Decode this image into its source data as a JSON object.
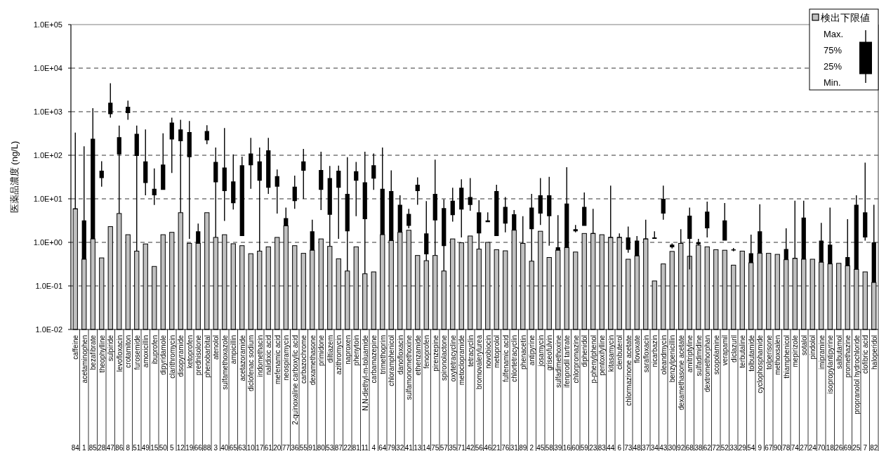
{
  "chart_data": {
    "type": "candlestick",
    "ylabel": "医薬品濃度 (ng/L)",
    "categories": [
      "caffeine",
      "acetaminophen",
      "bezafibrate",
      "theophylline",
      "sulpiride",
      "levofloxacin",
      "crotamiton",
      "furosemide",
      "amoxicillin",
      "ibuprofen",
      "dipyridamole",
      "clarithromycin",
      "disopyramide",
      "ketoprofen",
      "prednisolone",
      "phenobarbital",
      "atenolol",
      "sulfamethoxazole",
      "ampicillin",
      "acetazoramide",
      "diclofenac sodium",
      "indomethacin",
      "nalidixic acid",
      "mefenamic acid",
      "neospiramycin",
      "2-quinoxaline carboxylic acid",
      "carbazochrome",
      "dexamethasone",
      "primidone",
      "diltiazem",
      "azithromycin",
      "naproxen",
      "phenytoin",
      "N,N-diethyl-m-toluamide",
      "carbamazepine",
      "trimethoprim",
      "chloramphenicol",
      "danofloxacin",
      "sulfamonomethoxine",
      "ethenzamide",
      "fenoprofen",
      "pirenzepine",
      "spironolactone",
      "oxytetracycline",
      "metoclopramide",
      "tetracyclin",
      "bromovalerylurea",
      "novobiocin",
      "metoprolol",
      "fulfenamic acid",
      "chlortetracyclin",
      "phenacetin",
      "antipyrine",
      "josamycin",
      "griseofulvin",
      "sulfadimethoxine",
      "ifenprodil tartrate",
      "chlorpromazine",
      "diphenidol",
      "p-phenylphenol",
      "pentoxifylline",
      "kitasamycin",
      "clenbuterol",
      "chlormazinone acetate",
      "flovoxate",
      "sarafloxacin",
      "nicarbazin",
      "oleandmycin",
      "benzylpenicillin",
      "dexamethasone acetate",
      "amitriptyline",
      "sulfadimidine",
      "dextromethorphan",
      "scopolamine",
      "verapamil",
      "diclazuril",
      "terbutaline",
      "tolbutamide",
      "cyclophosphamide",
      "tolperisone",
      "methoxsalen",
      "thiamphenicol",
      "mepirizole",
      "sotalol",
      "pindolol",
      "imipramine",
      "isopropylantipyrine",
      "salbutamol",
      "promethazine",
      "propranolol hydrochloride",
      "clofibric acid",
      "haloperidol"
    ],
    "color": "#000000",
    "ohlc": [
      [
        5.9,
        330,
        5.9,
        5.9
      ],
      [
        0.41,
        160,
        0.41,
        3.2
      ],
      [
        1.2,
        1200,
        1.2,
        240
      ],
      [
        30,
        73,
        19,
        44
      ],
      [
        880,
        4500,
        730,
        1600
      ],
      [
        105,
        480,
        4.6,
        260
      ],
      [
        930,
        1800,
        650,
        1300
      ],
      [
        96,
        480,
        0.63,
        310
      ],
      [
        23,
        390,
        12,
        72
      ],
      [
        12,
        50,
        7.2,
        17
      ],
      [
        16,
        320,
        16,
        61
      ],
      [
        230,
        730,
        39,
        560
      ],
      [
        210,
        650,
        4.8,
        390
      ],
      [
        90,
        610,
        1.2,
        340
      ],
      [
        0.95,
        2.7,
        0.95,
        1.8
      ],
      [
        220,
        490,
        180,
        360
      ],
      [
        24,
        150,
        1.3,
        70
      ],
      [
        15,
        420,
        3.1,
        52
      ],
      [
        7.9,
        105,
        5.7,
        25
      ],
      [
        1.4,
        93,
        1.4,
        59
      ],
      [
        59,
        250,
        17,
        110
      ],
      [
        26,
        150,
        0.63,
        72
      ],
      [
        18,
        250,
        13,
        130
      ],
      [
        19,
        47,
        4.6,
        33
      ],
      [
        2.4,
        6.3,
        2.4,
        3.6
      ],
      [
        8.9,
        34,
        5.9,
        19
      ],
      [
        44,
        140,
        10,
        72
      ],
      [
        0.66,
        3.3,
        0.66,
        1.8
      ],
      [
        16,
        120,
        5.5,
        46
      ],
      [
        4.3,
        57,
        0.81,
        30
      ],
      [
        18,
        58,
        1.2,
        44
      ],
      [
        1.8,
        90,
        0.22,
        13
      ],
      [
        26,
        70,
        4,
        43
      ],
      [
        3.4,
        120,
        0.19,
        24
      ],
      [
        29,
        110,
        16,
        59
      ],
      [
        1.5,
        150,
        1.5,
        17
      ],
      [
        1.1,
        45,
        1.1,
        15
      ],
      [
        1.7,
        12,
        1.7,
        7.3
      ],
      [
        2.4,
        5.9,
        2.1,
        4.5
      ],
      [
        15,
        31,
        7.3,
        21
      ],
      [
        0.53,
        8.9,
        0.38,
        1.6
      ],
      [
        3.2,
        79,
        0.5,
        13
      ],
      [
        0.82,
        9.7,
        0.22,
        6.1
      ],
      [
        4.2,
        18,
        3,
        9
      ],
      [
        5.7,
        28,
        1.3,
        18
      ],
      [
        7.2,
        30,
        5.3,
        11
      ],
      [
        1.6,
        9.3,
        0.7,
        4.9
      ],
      [
        2.9,
        4.9,
        2.9,
        3.2
      ],
      [
        1.4,
        21,
        1.4,
        15
      ],
      [
        2.7,
        11,
        1.7,
        6.5
      ],
      [
        1.9,
        5.5,
        1.9,
        4.4
      ],
      [
        0.95,
        4,
        0.95,
        0.95
      ],
      [
        2,
        13,
        0.37,
        6.3
      ],
      [
        4.6,
        30,
        2.5,
        12
      ],
      [
        4,
        32,
        0.84,
        12
      ],
      [
        0.66,
        4.2,
        0.66,
        0.77
      ],
      [
        0.76,
        53,
        0.76,
        7.8
      ],
      [
        1.8,
        2.5,
        1.7,
        2
      ],
      [
        2.4,
        14,
        2.4,
        6.5
      ],
      [
        1.6,
        5.9,
        1.6,
        1.6
      ],
      null,
      [
        1.3,
        20,
        1.3,
        1.3
      ],
      [
        1.3,
        1.6,
        1.3,
        1.3
      ],
      [
        0.68,
        2.3,
        0.58,
        1.3
      ],
      [
        0.49,
        1.4,
        0.49,
        1.1
      ],
      [
        1.2,
        3.3,
        1.2,
        1.2
      ],
      [
        1.2,
        1.8,
        1.2,
        1.3
      ],
      [
        4.6,
        20,
        3.3,
        10
      ],
      [
        0.77,
        0.95,
        0.72,
        0.89
      ],
      [
        0.95,
        2,
        0.95,
        0.95
      ],
      [
        1.2,
        6.3,
        0.24,
        4.1
      ],
      [
        0.9,
        1.2,
        0.86,
        1
      ],
      [
        2.1,
        8.6,
        1.3,
        5.1
      ],
      null,
      [
        1.1,
        8,
        1.1,
        3.2
      ],
      [
        0.65,
        0.74,
        0.62,
        0.69
      ],
      null,
      [
        0.34,
        1.5,
        0.34,
        0.56
      ],
      [
        0.56,
        7.5,
        0.56,
        1.8
      ],
      null,
      null,
      [
        0.4,
        2.1,
        0.4,
        0.7
      ],
      [
        0.43,
        9,
        0.43,
        0.43
      ],
      [
        0.41,
        9,
        0.41,
        3.7
      ],
      null,
      [
        0.35,
        2.8,
        0.35,
        1.1
      ],
      [
        0.32,
        6.3,
        0.32,
        0.89
      ],
      null,
      [
        0.29,
        3.4,
        0.29,
        0.46
      ],
      [
        0.24,
        12,
        0.24,
        7.3
      ],
      [
        1.3,
        68,
        1.1,
        4.9
      ],
      [
        0.12,
        7.3,
        0.12,
        1
      ]
    ],
    "series": [
      {
        "type": "bar",
        "name": "検出下限値",
        "color": "#c0c0c0",
        "values": [
          5.9,
          0.41,
          1.2,
          0.44,
          2.3,
          4.6,
          1.5,
          0.63,
          0.92,
          0.28,
          1.5,
          1.7,
          4.8,
          0.95,
          0.95,
          4.8,
          1.3,
          1.5,
          0.93,
          0.84,
          0.55,
          0.63,
          0.79,
          1.3,
          2.4,
          0.84,
          0.56,
          0.66,
          1.2,
          0.81,
          0.42,
          0.22,
          0.79,
          0.19,
          0.21,
          1.5,
          1.1,
          1.7,
          1.9,
          0.5,
          0.38,
          0.5,
          0.22,
          1.2,
          0.98,
          1.4,
          0.7,
          1,
          0.68,
          0.64,
          1.9,
          0.95,
          0.37,
          1.8,
          0.45,
          0.66,
          0.76,
          0.6,
          1.6,
          1.6,
          1.5,
          1.3,
          1.3,
          0.41,
          0.49,
          1.2,
          0.13,
          0.32,
          0.62,
          0.95,
          0.48,
          0.86,
          0.79,
          0.68,
          0.66,
          0.3,
          0.63,
          0.34,
          0.56,
          0.56,
          0.53,
          0.4,
          0.43,
          0.41,
          0.41,
          0.35,
          0.32,
          0.33,
          0.29,
          0.24,
          0.21,
          0.12
        ]
      }
    ],
    "log": true,
    "ylim": [
      0.01,
      100000
    ],
    "yticks": [
      {
        "value": 0.01,
        "label": "1.0E-02"
      },
      {
        "value": 0.1,
        "label": "1.0E-01"
      },
      {
        "value": 1,
        "label": "1.0E+00"
      },
      {
        "value": 10,
        "label": "1.0E+01"
      },
      {
        "value": 100,
        "label": "1.0E+02"
      },
      {
        "value": 1000,
        "label": "1.0E+03"
      },
      {
        "value": 10000,
        "label": "1.0E+04"
      },
      {
        "value": 100000,
        "label": "1.0E+05"
      }
    ],
    "grid": "y",
    "legend": "top right",
    "annotations": [
      "Max.",
      "75%",
      "25%",
      "Min.",
      "84",
      "1",
      "85",
      "28",
      "47",
      "86",
      "8",
      "51",
      "49",
      "15",
      "50",
      "5",
      "12",
      "19",
      "66",
      "88",
      "3",
      "40",
      "65",
      "63",
      "10",
      "17",
      "61",
      "20",
      "77",
      "36",
      "55",
      "91",
      "80",
      "53",
      "87",
      "22",
      "81",
      "11",
      "4",
      "64",
      "79",
      "32",
      "41",
      "13",
      "14",
      "75",
      "57",
      "35",
      "71",
      "42",
      "56",
      "46",
      "21",
      "76",
      "31",
      "89",
      "2",
      "45",
      "58",
      "39",
      "16",
      "60",
      "59",
      "23",
      "83",
      "44",
      "6",
      "73",
      "48",
      "37",
      "34",
      "43",
      "30",
      "92",
      "68",
      "38",
      "62",
      "72",
      "52",
      "33",
      "29",
      "54",
      "9",
      "67",
      "90",
      "78",
      "74",
      "27",
      "24",
      "70",
      "18",
      "26",
      "69",
      "25",
      "7",
      "82"
    ]
  }
}
